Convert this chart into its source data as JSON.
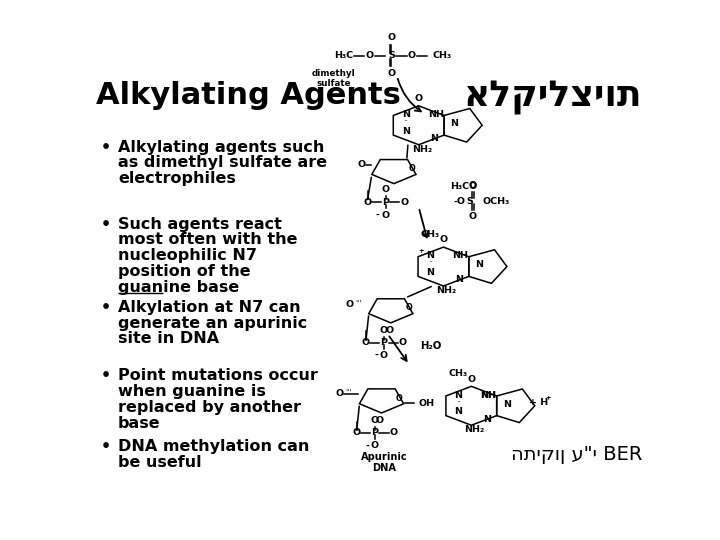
{
  "title": "Alkylating Agents",
  "hebrew_title": "אלקילציות",
  "hebrew_bottom": "התיקון ע\"י BER",
  "background_color": "#ffffff",
  "title_fontsize": 22,
  "bullet_fontsize": 11.5,
  "bullets": [
    "Alkylating agents such\nas dimethyl sulfate are\nelectrophiles",
    "Such agents react\nmost often with the\nnucleophilic N7\nposition of the\nguanine base",
    "Alkylation at N7 can\ngenerate an apurinic\nsite in DNA",
    "Point mutations occur\nwhen guanine is\nreplaced by another\nbase",
    "DNA methylation can\nbe useful"
  ],
  "text_color": "#000000",
  "title_color": "#000000",
  "hebrew_title_color": "#000000",
  "hebrew_bottom_color": "#000000"
}
